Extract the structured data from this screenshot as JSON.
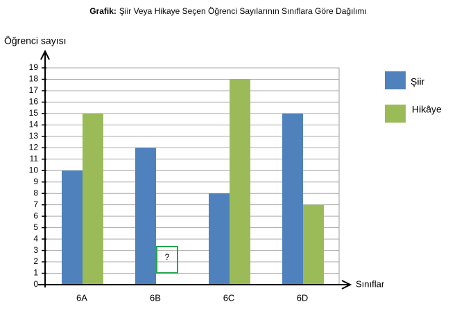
{
  "chart_data": {
    "type": "bar",
    "title_prefix": "Grafik:",
    "title": "Şiir Veya Hikaye Seçen Öğrenci Sayılarının Sınıflara Göre Dağılımı",
    "y_label": "Öğrenci sayısı",
    "x_label": "Sınıflar",
    "categories": [
      "6A",
      "6B",
      "6C",
      "6D"
    ],
    "series": [
      {
        "name": "Şiir",
        "color": "#4f81bd",
        "values": [
          10,
          12,
          8,
          15
        ]
      },
      {
        "name": "Hikâye",
        "color": "#9bbb59",
        "values": [
          15,
          null,
          18,
          7
        ]
      }
    ],
    "annotation": "?",
    "ylim": [
      0,
      19
    ],
    "yticks": [
      0,
      1,
      2,
      3,
      4,
      5,
      6,
      7,
      8,
      9,
      10,
      11,
      12,
      13,
      14,
      15,
      16,
      17,
      18,
      19
    ],
    "grid": true
  }
}
